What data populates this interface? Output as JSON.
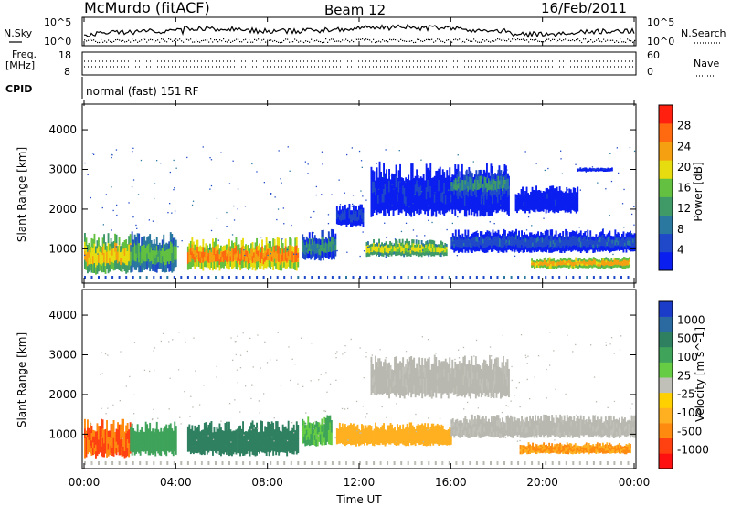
{
  "header": {
    "station": "McMurdo (fitACF)",
    "beam": "Beam 12",
    "date": "16/Feb/2011"
  },
  "side_labels": {
    "n_sky": "N.Sky",
    "n_search": "N.Search",
    "freq_line1": "Freq.",
    "freq_line2": "[MHz]",
    "nave": "Nave",
    "cpid": "CPID",
    "cpid_text": "normal (fast) 151 RF"
  },
  "noise_panel": {
    "left_ticks": [
      "10^5",
      "10^0"
    ],
    "right_ticks": [
      "10^5",
      "10^0"
    ]
  },
  "freq_panel": {
    "left_ticks": [
      "18",
      "8"
    ],
    "right_ticks": [
      "60",
      "0"
    ]
  },
  "x_axis": {
    "label": "Time UT",
    "ticks": [
      "00:00",
      "04:00",
      "08:00",
      "12:00",
      "16:00",
      "20:00",
      "00:00"
    ]
  },
  "colors": {
    "power_scale": [
      "#0a1ef0",
      "#1f49c8",
      "#2a78a0",
      "#3f9a68",
      "#63c040",
      "#e6dc10",
      "#f5a010",
      "#ff6a10",
      "#ff2010"
    ],
    "velocity_scale": [
      "#1a3cc8",
      "#2a6aa0",
      "#2f8060",
      "#3fa35a",
      "#66cc44",
      "#c0c0b8",
      "#ffd000",
      "#ffb020",
      "#ff8a10",
      "#ff4010",
      "#ff1010"
    ],
    "ground_scatter": "#b8b8b0"
  },
  "chart_data": [
    {
      "type": "line",
      "title": "McMurdo (fitACF)",
      "panel": "noise",
      "series": [
        {
          "name": "N.Sky"
        },
        {
          "name": "N.Search"
        }
      ],
      "ylim": [
        1,
        100000
      ],
      "x": [
        "00:00",
        "04:00",
        "08:00",
        "12:00",
        "16:00",
        "20:00",
        "00:00"
      ]
    },
    {
      "type": "line",
      "panel": "frequency",
      "ylabel": "Freq. [MHz]",
      "ylim": [
        8,
        18
      ],
      "series": [
        {
          "name": "Freq.",
          "values": [
            10.5,
            10.5,
            10.5,
            10.5,
            10.5,
            10.5,
            10.5
          ]
        },
        {
          "name": "Nave",
          "values": [
            25,
            25,
            25,
            25,
            25,
            25,
            25
          ]
        }
      ]
    },
    {
      "type": "heatmap",
      "panel": "power",
      "xlabel": "Time UT",
      "ylabel": "Slant Range [km]",
      "colorbar_label": "Power [dB]",
      "colorbar_ticks": [
        "4",
        "8",
        "12",
        "16",
        "20",
        "24",
        "28"
      ],
      "y_ticks": [
        "1000",
        "2000",
        "3000",
        "4000"
      ],
      "ylim": [
        180,
        4600
      ],
      "xlim_hours": [
        0,
        24
      ],
      "regions": [
        {
          "t0": 0.0,
          "t1": 2.0,
          "r0": 350,
          "r1": 1400,
          "level": 24
        },
        {
          "t0": 2.0,
          "t1": 4.0,
          "r0": 400,
          "r1": 1450,
          "level": 18
        },
        {
          "t0": 4.5,
          "t1": 9.3,
          "r0": 450,
          "r1": 1300,
          "level": 28
        },
        {
          "t0": 9.5,
          "t1": 11.0,
          "r0": 700,
          "r1": 1500,
          "level": 14
        },
        {
          "t0": 11.0,
          "t1": 12.2,
          "r0": 1550,
          "r1": 2150,
          "level": 8
        },
        {
          "t0": 12.3,
          "t1": 15.8,
          "r0": 800,
          "r1": 1250,
          "level": 22
        },
        {
          "t0": 12.5,
          "t1": 18.5,
          "r0": 1800,
          "r1": 3200,
          "level": 6
        },
        {
          "t0": 16.0,
          "t1": 18.5,
          "r0": 2300,
          "r1": 3000,
          "level": 14
        },
        {
          "t0": 18.8,
          "t1": 21.5,
          "r0": 1900,
          "r1": 2600,
          "level": 5
        },
        {
          "t0": 16.0,
          "t1": 24.0,
          "r0": 900,
          "r1": 1500,
          "level": 9
        },
        {
          "t0": 19.5,
          "t1": 23.8,
          "r0": 500,
          "r1": 800,
          "level": 26
        },
        {
          "t0": 21.5,
          "t1": 23.0,
          "r0": 2950,
          "r1": 3050,
          "level": 6
        }
      ]
    },
    {
      "type": "heatmap",
      "panel": "velocity",
      "xlabel": "Time UT",
      "ylabel": "Slant Range [km]",
      "colorbar_label": "Velocity [m s^-1]",
      "colorbar_ticks": [
        "1000",
        "500",
        "100",
        "25",
        "-25",
        "-100",
        "-500",
        "-1000"
      ],
      "y_ticks": [
        "1000",
        "2000",
        "3000",
        "4000"
      ],
      "ylim": [
        180,
        4600
      ],
      "xlim_hours": [
        0,
        24
      ],
      "regions": [
        {
          "t0": 0.0,
          "t1": 2.0,
          "r0": 400,
          "r1": 1400,
          "velocity": -300
        },
        {
          "t0": 2.0,
          "t1": 4.0,
          "r0": 450,
          "r1": 1350,
          "velocity": 80
        },
        {
          "t0": 4.5,
          "t1": 9.3,
          "r0": 450,
          "r1": 1350,
          "velocity": 250
        },
        {
          "t0": 9.5,
          "t1": 10.8,
          "r0": 700,
          "r1": 1500,
          "velocity": 60
        },
        {
          "t0": 11.0,
          "t1": 16.0,
          "r0": 700,
          "r1": 1300,
          "velocity": -80
        },
        {
          "t0": 12.5,
          "t1": 18.5,
          "r0": 1900,
          "r1": 3000,
          "velocity": 0
        },
        {
          "t0": 16.0,
          "t1": 24.0,
          "r0": 900,
          "r1": 1500,
          "velocity": 0
        },
        {
          "t0": 19.0,
          "t1": 23.8,
          "r0": 500,
          "r1": 800,
          "velocity": -150
        }
      ]
    }
  ]
}
